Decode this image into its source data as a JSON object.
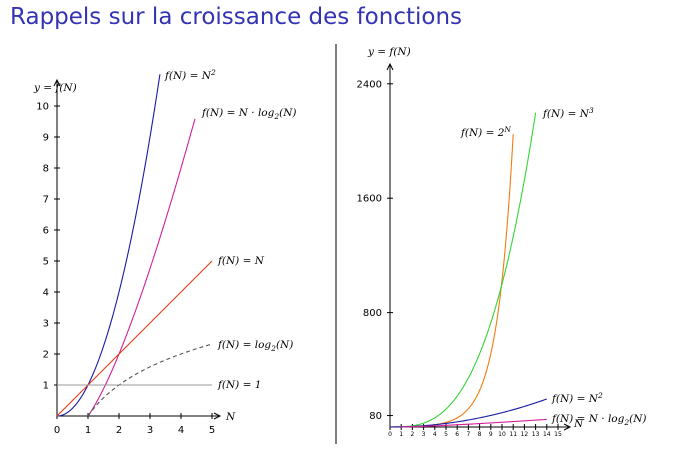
{
  "slide": {
    "title": "Rappels sur la croissance des fonctions"
  },
  "chart_data": [
    {
      "type": "line",
      "xlabel": "N",
      "ylabel": "y = f(N)",
      "xlim": [
        0,
        5
      ],
      "ylim": [
        0,
        10
      ],
      "x_ticks": [
        "0",
        "1",
        "2",
        "3",
        "4",
        "5"
      ],
      "y_ticks": [
        "1",
        "2",
        "3",
        "4",
        "5",
        "6",
        "7",
        "8",
        "9",
        "10"
      ],
      "series": [
        {
          "name": "f(N) = N²",
          "label": "f(N) = N",
          "sup": "2",
          "color": "#1a1aa6",
          "dashed": false,
          "fn": "sq",
          "domain": [
            0,
            3.32
          ]
        },
        {
          "name": "f(N) = N · log₂(N)",
          "label": "f(N) = N · log",
          "sub": "2",
          "tail": "(N)",
          "color": "#d4209a",
          "dashed": false,
          "fn": "nlog",
          "domain": [
            1,
            4.45
          ]
        },
        {
          "name": "f(N) = N",
          "label": "f(N) = N",
          "color": "#e03a1a",
          "dashed": false,
          "fn": "lin",
          "domain": [
            0,
            5
          ]
        },
        {
          "name": "f(N) = log₂(N)",
          "label": "f(N) = log",
          "sub": "2",
          "tail": "(N)",
          "color": "#555555",
          "dashed": true,
          "fn": "log",
          "domain": [
            1,
            5
          ]
        },
        {
          "name": "f(N) = 1",
          "label": "f(N) = 1",
          "color": "#999999",
          "dashed": false,
          "fn": "one",
          "domain": [
            0,
            5
          ]
        }
      ]
    },
    {
      "type": "line",
      "xlabel": "N",
      "ylabel": "y = f(N)",
      "xlim": [
        0,
        15
      ],
      "ylim": [
        0,
        2400
      ],
      "x_ticks": [
        "0",
        "1",
        "2",
        "3",
        "4",
        "5",
        "6",
        "7",
        "8",
        "9",
        "10",
        "11",
        "12",
        "13",
        "14",
        "15"
      ],
      "y_ticks": [
        "80",
        "800",
        "1600",
        "2400"
      ],
      "series": [
        {
          "name": "f(N) = 2ᴺ",
          "label": "f(N) = 2",
          "sup": "N",
          "color": "#ef7d0f",
          "dashed": false,
          "fn": "exp",
          "domain": [
            0,
            11
          ]
        },
        {
          "name": "f(N) = N³",
          "label": "f(N) = N",
          "sup": "3",
          "color": "#36d436",
          "dashed": false,
          "fn": "cube",
          "domain": [
            0,
            13
          ]
        },
        {
          "name": "f(N) = N²",
          "label": "f(N) = N",
          "sup": "2",
          "color": "#1a1aa6",
          "dashed": false,
          "fn": "sq",
          "domain": [
            0,
            14
          ]
        },
        {
          "name": "f(N) = N · log₂(N)",
          "label": "f(N) = N · log",
          "sub": "2",
          "tail": "(N)",
          "color": "#d4209a",
          "dashed": false,
          "fn": "nlog",
          "domain": [
            1,
            14
          ]
        }
      ]
    }
  ]
}
